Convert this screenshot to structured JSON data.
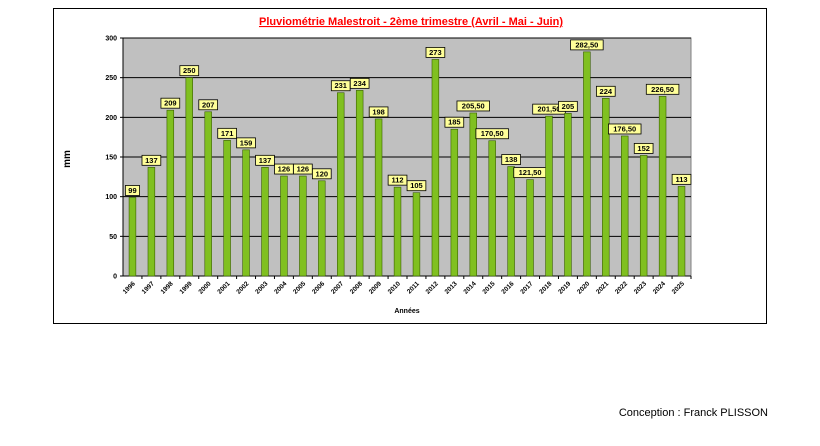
{
  "chart_data": {
    "type": "bar",
    "title": "Pluviométrie Malestroit - 2ème trimestre (Avril - Mai - Juin)",
    "xlabel": "Années",
    "ylabel": "mm",
    "ylim": [
      0,
      300
    ],
    "yticks": [
      "0",
      "50",
      "100",
      "150",
      "200",
      "250",
      "300"
    ],
    "grid": true,
    "legend": "none",
    "categories": [
      "1996",
      "1997",
      "1998",
      "1999",
      "2000",
      "2001",
      "2002",
      "2003",
      "2004",
      "2005",
      "2006",
      "2007",
      "2008",
      "2009",
      "2010",
      "2011",
      "2012",
      "2013",
      "2014",
      "2015",
      "2016",
      "2017",
      "2018",
      "2019",
      "2020",
      "2021",
      "2022",
      "2023",
      "2024",
      "2025"
    ],
    "values": [
      99,
      137,
      209,
      250,
      207,
      171,
      159,
      137,
      126,
      126,
      120,
      231,
      234,
      198,
      112,
      105,
      273,
      185,
      205.5,
      170.5,
      138,
      121.5,
      201.5,
      205,
      282.5,
      224,
      176.5,
      152,
      226.5,
      113
    ],
    "value_labels": [
      "99",
      "137",
      "209",
      "250",
      "207",
      "171",
      "159",
      "137",
      "126",
      "126",
      "120",
      "231",
      "234",
      "198",
      "112",
      "105",
      "273",
      "185",
      "205,50",
      "170,50",
      "138",
      "121,50",
      "201,50",
      "205",
      "282,50",
      "224",
      "176,50",
      "152",
      "226,50",
      "113"
    ],
    "colors": {
      "plot_bg": "#c0c0c0",
      "bar_fill": "#80c020",
      "bar_stroke": "#3a5e00",
      "label_bg": "#ffff99",
      "title_color": "#ff0000",
      "grid": "#000000"
    }
  },
  "footer": {
    "credit": "Conception : Franck PLISSON"
  }
}
